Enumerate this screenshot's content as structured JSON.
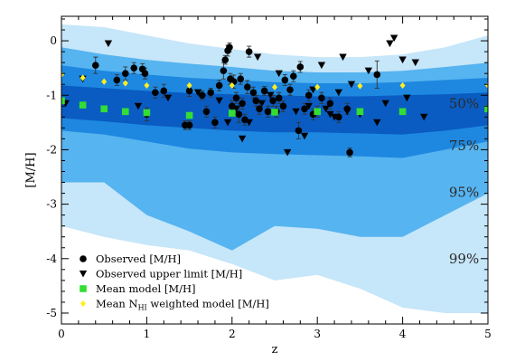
{
  "chart_data": {
    "type": "scatter",
    "xlabel": "z",
    "ylabel": "[M/H]",
    "xlim": [
      0,
      5
    ],
    "ylim": [
      -5.2,
      0.45
    ],
    "x_ticks": [
      "0",
      "1",
      "2",
      "3",
      "4",
      "5"
    ],
    "y_ticks": [
      "0",
      "-1",
      "-2",
      "-3",
      "-4",
      "-5"
    ],
    "x_tick_values": [
      0,
      1,
      2,
      3,
      4,
      5
    ],
    "y_tick_values": [
      0,
      -1,
      -2,
      -3,
      -4,
      -5
    ],
    "grid": false,
    "legend_position": "bottom-left",
    "colors": {
      "band_99": "#c6e6f9",
      "band_95": "#56b4f0",
      "band_75": "#1e88e0",
      "band_50": "#0a5cc2",
      "observed": "#000000",
      "mean_model": "#33dd33",
      "weighted_model": "#ffee22"
    },
    "bands": [
      {
        "label": "99%",
        "z": [
          0,
          0.5,
          1,
          1.5,
          2,
          2.5,
          3,
          3.5,
          4,
          4.5,
          5
        ],
        "upper": [
          0.3,
          0.25,
          0.1,
          -0.05,
          -0.15,
          -0.25,
          -0.3,
          -0.3,
          -0.25,
          -0.12,
          0.1
        ],
        "lower": [
          -3.4,
          -3.6,
          -3.75,
          -3.85,
          -4.1,
          -4.4,
          -4.3,
          -4.55,
          -4.9,
          -5.0,
          -5.0
        ]
      },
      {
        "label": "95%",
        "z": [
          0,
          0.5,
          1,
          1.5,
          2,
          2.5,
          3,
          3.5,
          4,
          4.5,
          5
        ],
        "upper": [
          -0.12,
          -0.25,
          -0.35,
          -0.42,
          -0.48,
          -0.55,
          -0.58,
          -0.58,
          -0.55,
          -0.48,
          -0.4
        ],
        "lower": [
          -2.6,
          -2.6,
          -3.2,
          -3.5,
          -3.85,
          -3.4,
          -3.45,
          -3.6,
          -3.6,
          -3.2,
          -2.8
        ]
      },
      {
        "label": "75%",
        "z": [
          0,
          0.5,
          1,
          1.5,
          2,
          2.5,
          3,
          3.5,
          4,
          4.5,
          5
        ],
        "upper": [
          -0.45,
          -0.55,
          -0.62,
          -0.68,
          -0.72,
          -0.76,
          -0.78,
          -0.78,
          -0.76,
          -0.72,
          -0.68
        ],
        "lower": [
          -1.65,
          -1.72,
          -1.85,
          -1.98,
          -2.05,
          -2.08,
          -2.1,
          -2.12,
          -2.15,
          -2.0,
          -1.85
        ]
      },
      {
        "label": "50%",
        "z": [
          0,
          0.5,
          1,
          1.5,
          2,
          2.5,
          3,
          3.5,
          4,
          4.5,
          5
        ],
        "upper": [
          -0.82,
          -0.87,
          -0.92,
          -0.96,
          -0.98,
          -1.0,
          -1.02,
          -1.02,
          -1.0,
          -0.98,
          -0.95
        ],
        "lower": [
          -1.42,
          -1.48,
          -1.55,
          -1.6,
          -1.65,
          -1.68,
          -1.68,
          -1.7,
          -1.72,
          -1.65,
          -1.55
        ]
      }
    ],
    "band_labels": [
      {
        "text": "50%",
        "x": 4.72,
        "y": -1.15
      },
      {
        "text": "75%",
        "x": 4.72,
        "y": -1.93
      },
      {
        "text": "95%",
        "x": 4.72,
        "y": -2.78
      },
      {
        "text": "99%",
        "x": 4.72,
        "y": -4.0
      }
    ],
    "series": [
      {
        "name": "Observed [M/H]",
        "marker": "circle",
        "points": [
          [
            0.4,
            -0.45,
            0.15
          ],
          [
            0.65,
            -0.72,
            0.1
          ],
          [
            0.75,
            -0.6,
            0.12
          ],
          [
            0.85,
            -0.5,
            0.1
          ],
          [
            0.95,
            -0.52,
            0.1
          ],
          [
            0.98,
            -0.6,
            0.1
          ],
          [
            1.0,
            -1.35,
            0.12
          ],
          [
            1.1,
            -0.95,
            0.1
          ],
          [
            1.2,
            -0.92,
            0.12
          ],
          [
            1.5,
            -0.92,
            0.1
          ],
          [
            1.45,
            -1.55,
            0.08
          ],
          [
            1.5,
            -1.55,
            0.08
          ],
          [
            1.65,
            -1.0,
            0.08
          ],
          [
            1.7,
            -1.3,
            0.1
          ],
          [
            1.75,
            -0.95,
            0.08
          ],
          [
            1.8,
            -1.5,
            0.1
          ],
          [
            1.85,
            -0.82,
            0.1
          ],
          [
            1.9,
            -0.55,
            0.15
          ],
          [
            1.92,
            -0.35,
            0.08
          ],
          [
            1.95,
            -0.18,
            0.1
          ],
          [
            1.97,
            -0.12,
            0.08
          ],
          [
            1.98,
            -0.7,
            0.1
          ],
          [
            2.0,
            -1.2,
            0.1
          ],
          [
            2.02,
            -0.75,
            0.12
          ],
          [
            2.05,
            -1.05,
            0.1
          ],
          [
            2.08,
            -1.35,
            0.15
          ],
          [
            2.1,
            -0.7,
            0.1
          ],
          [
            2.12,
            -1.15,
            0.1
          ],
          [
            2.15,
            -1.45,
            0.1
          ],
          [
            2.18,
            -0.85,
            0.12
          ],
          [
            2.2,
            -0.2,
            0.1
          ],
          [
            2.25,
            -0.95,
            0.1
          ],
          [
            2.28,
            -1.1,
            0.1
          ],
          [
            2.32,
            -1.25,
            0.1
          ],
          [
            2.38,
            -0.92,
            0.08
          ],
          [
            2.42,
            -1.3,
            0.1
          ],
          [
            2.48,
            -1.1,
            0.1
          ],
          [
            2.52,
            -1.3,
            0.1
          ],
          [
            2.55,
            -1.05,
            0.1
          ],
          [
            2.6,
            -1.2,
            0.1
          ],
          [
            2.62,
            -0.72,
            0.1
          ],
          [
            2.68,
            -0.9,
            0.1
          ],
          [
            2.72,
            -0.65,
            0.1
          ],
          [
            2.78,
            -1.65,
            0.15
          ],
          [
            2.8,
            -0.48,
            0.1
          ],
          [
            2.85,
            -1.25,
            0.1
          ],
          [
            2.9,
            -1.0,
            0.1
          ],
          [
            2.95,
            -1.35,
            0.1
          ],
          [
            3.0,
            -1.3,
            0.1
          ],
          [
            3.05,
            -1.05,
            0.1
          ],
          [
            3.15,
            -1.15,
            0.1
          ],
          [
            3.25,
            -1.4,
            0.1
          ],
          [
            3.35,
            -1.25,
            0.1
          ],
          [
            3.38,
            -2.05,
            0.08
          ],
          [
            3.7,
            -0.62,
            0.25
          ]
        ]
      },
      {
        "name": "Observed upper limit [M/H]",
        "marker": "triangle-down",
        "points": [
          [
            0.05,
            -1.15
          ],
          [
            0.25,
            -0.7
          ],
          [
            0.55,
            -0.05
          ],
          [
            0.9,
            -1.2
          ],
          [
            1.25,
            -1.05
          ],
          [
            1.6,
            -0.95
          ],
          [
            1.85,
            -1.1
          ],
          [
            1.95,
            -1.5
          ],
          [
            2.05,
            -1.25
          ],
          [
            2.12,
            -1.8
          ],
          [
            2.2,
            -1.5
          ],
          [
            2.3,
            -0.3
          ],
          [
            2.35,
            -1.15
          ],
          [
            2.45,
            -1.0
          ],
          [
            2.55,
            -0.6
          ],
          [
            2.65,
            -2.05
          ],
          [
            2.75,
            -1.3
          ],
          [
            2.85,
            -1.75
          ],
          [
            2.9,
            -1.2
          ],
          [
            2.95,
            -0.9
          ],
          [
            3.05,
            -0.45
          ],
          [
            3.1,
            -1.25
          ],
          [
            3.15,
            -1.35
          ],
          [
            3.2,
            -1.4
          ],
          [
            3.25,
            -0.95
          ],
          [
            3.3,
            -0.3
          ],
          [
            3.35,
            -1.3
          ],
          [
            3.4,
            -0.8
          ],
          [
            3.5,
            -1.35
          ],
          [
            3.6,
            -0.55
          ],
          [
            3.7,
            -1.5
          ],
          [
            3.8,
            -1.15
          ],
          [
            3.85,
            -0.05
          ],
          [
            3.9,
            0.05
          ],
          [
            4.0,
            -0.35
          ],
          [
            4.05,
            -1.05
          ],
          [
            4.15,
            -0.4
          ],
          [
            4.25,
            -1.4
          ]
        ]
      },
      {
        "name": "Mean model [M/H]",
        "marker": "square",
        "points": [
          [
            0.0,
            -1.1
          ],
          [
            0.25,
            -1.18
          ],
          [
            0.5,
            -1.25
          ],
          [
            0.75,
            -1.3
          ],
          [
            1.0,
            -1.32
          ],
          [
            1.5,
            -1.37
          ],
          [
            2.0,
            -1.33
          ],
          [
            2.5,
            -1.31
          ],
          [
            3.0,
            -1.3
          ],
          [
            3.5,
            -1.3
          ],
          [
            4.0,
            -1.3
          ],
          [
            5.0,
            -1.25
          ]
        ]
      },
      {
        "name": "Mean NHI weighted model [M/H]",
        "marker": "diamond",
        "points": [
          [
            0.0,
            -0.62
          ],
          [
            0.25,
            -0.68
          ],
          [
            0.5,
            -0.75
          ],
          [
            0.75,
            -0.78
          ],
          [
            1.0,
            -0.82
          ],
          [
            1.5,
            -0.82
          ],
          [
            2.0,
            -0.82
          ],
          [
            2.5,
            -0.85
          ],
          [
            3.0,
            -0.85
          ],
          [
            3.5,
            -0.83
          ],
          [
            4.0,
            -0.82
          ],
          [
            5.0,
            -0.82
          ]
        ]
      }
    ],
    "legend": [
      {
        "marker": "circle",
        "label": "Observed [M/H]"
      },
      {
        "marker": "triangle-down",
        "label": "Observed upper limit [M/H]"
      },
      {
        "marker": "square",
        "label": "Mean model [M/H]"
      },
      {
        "marker": "diamond",
        "label_main": "Mean N",
        "label_sub": "HI",
        "label_tail": " weighted model [M/H]"
      }
    ]
  }
}
